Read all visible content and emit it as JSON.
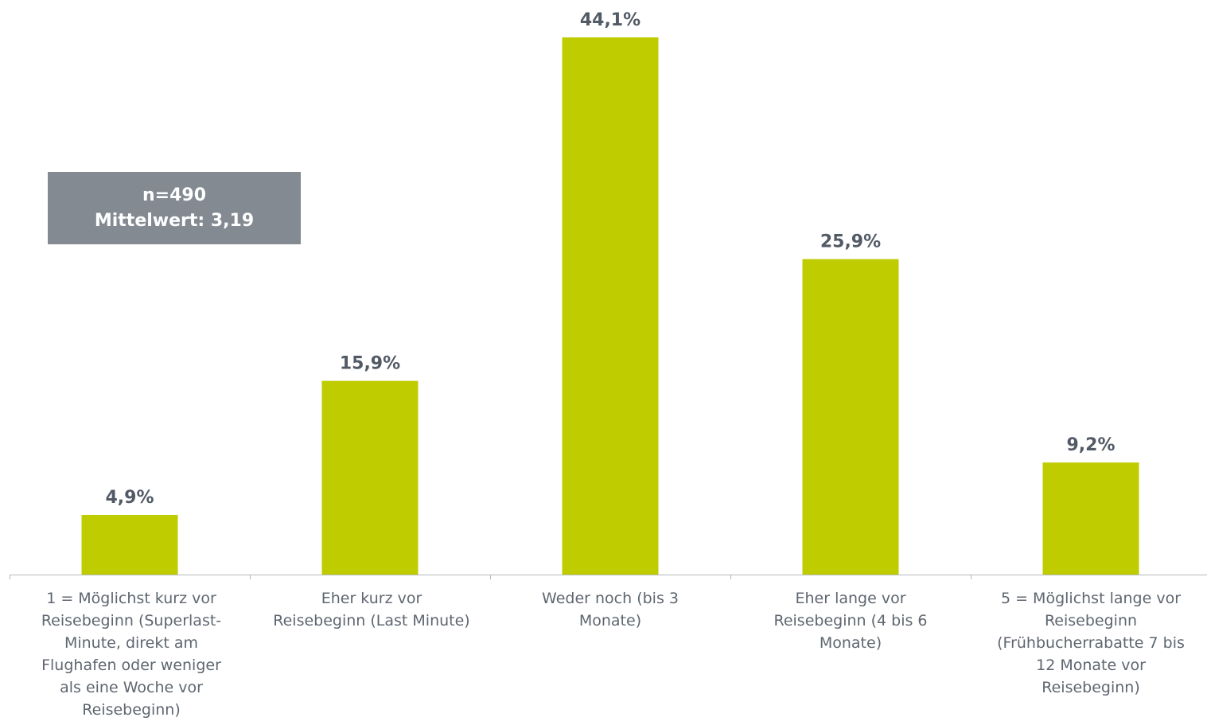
{
  "chart_data": {
    "type": "bar",
    "categories": [
      "1 = Möglichst kurz vor\nReisebeginn (Superlast-\nMinute, direkt am\nFlughafen oder weniger\nals eine Woche vor\nReisebeginn)",
      "Eher kurz vor\nReisebeginn (Last Minute)",
      "Weder noch (bis 3\nMonate)",
      "Eher lange vor\nReisebeginn (4 bis 6\nMonate)",
      "5 = Möglichst lange vor\nReisebeginn\n(Frühbucherrabatte 7 bis\n12 Monate vor\nReisebeginn)"
    ],
    "values": [
      4.9,
      15.9,
      44.1,
      25.9,
      9.2
    ],
    "value_labels": [
      "4,9%",
      "15,9%",
      "44,1%",
      "25,9%",
      "9,2%"
    ],
    "ylim": [
      0,
      44.1
    ],
    "bar_color": "#bfcc00",
    "label_color": "#525a66",
    "grid": false,
    "legend": false
  },
  "info_box": {
    "n_label": "n=490",
    "mean_label": "Mittelwert: 3,19",
    "background": "#838a92"
  }
}
